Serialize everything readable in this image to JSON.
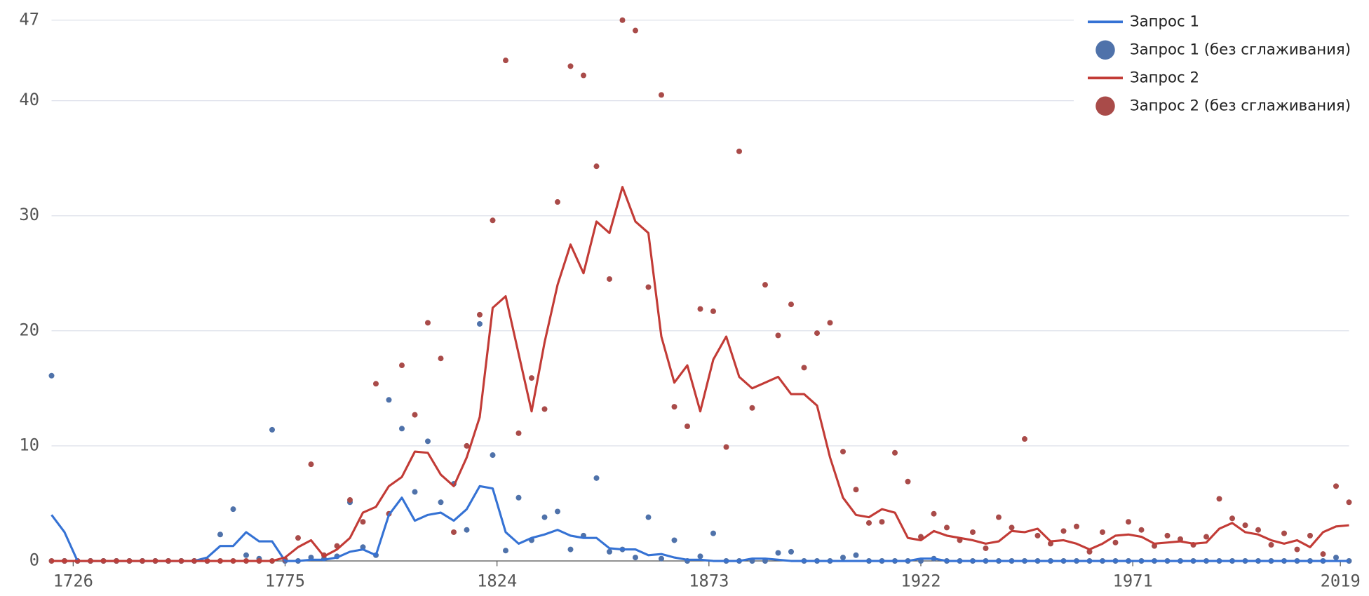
{
  "chart_data": {
    "type": "line",
    "x": [
      1721,
      1724,
      1727,
      1730,
      1733,
      1736,
      1739,
      1742,
      1745,
      1748,
      1751,
      1754,
      1757,
      1760,
      1763,
      1766,
      1769,
      1772,
      1775,
      1778,
      1781,
      1784,
      1787,
      1790,
      1793,
      1796,
      1799,
      1802,
      1805,
      1808,
      1811,
      1814,
      1817,
      1820,
      1823,
      1826,
      1829,
      1832,
      1835,
      1838,
      1841,
      1844,
      1847,
      1850,
      1853,
      1856,
      1859,
      1862,
      1865,
      1868,
      1871,
      1874,
      1877,
      1880,
      1883,
      1886,
      1889,
      1892,
      1895,
      1898,
      1901,
      1904,
      1907,
      1910,
      1913,
      1916,
      1919,
      1922,
      1925,
      1928,
      1931,
      1934,
      1937,
      1940,
      1943,
      1946,
      1949,
      1952,
      1955,
      1958,
      1961,
      1964,
      1967,
      1970,
      1973,
      1976,
      1979,
      1982,
      1985,
      1988,
      1991,
      1994,
      1997,
      2000,
      2003,
      2006,
      2009,
      2012,
      2015,
      2018,
      2021
    ],
    "series": [
      {
        "name": "Запрос 1",
        "type": "line",
        "color": "#3572d4",
        "values": [
          4.0,
          2.5,
          0,
          0,
          0,
          0,
          0,
          0,
          0,
          0,
          0,
          0,
          0.3,
          1.3,
          1.3,
          2.5,
          1.7,
          1.7,
          0,
          0,
          0.1,
          0.1,
          0.3,
          0.8,
          1.0,
          0.5,
          4.0,
          5.5,
          3.5,
          4.0,
          4.2,
          3.5,
          4.5,
          6.5,
          6.3,
          2.5,
          1.5,
          2.0,
          2.3,
          2.7,
          2.2,
          2.0,
          2.0,
          1.1,
          1.0,
          1.0,
          0.5,
          0.6,
          0.3,
          0.1,
          0.1,
          0,
          0,
          0,
          0.2,
          0.2,
          0.1,
          0,
          0,
          0,
          0,
          0,
          0,
          0,
          0,
          0,
          0,
          0.2,
          0.2,
          0,
          0,
          0,
          0,
          0,
          0,
          0,
          0,
          0,
          0,
          0,
          0,
          0,
          0,
          0,
          0,
          0,
          0,
          0,
          0,
          0,
          0,
          0,
          0,
          0,
          0,
          0,
          0,
          0,
          0,
          0,
          0
        ]
      },
      {
        "name": "Запрос 1 (без сглаживания)",
        "type": "scatter",
        "color": "#4f72aa",
        "values": [
          16.1,
          0,
          0,
          0,
          0,
          0,
          0,
          0,
          0,
          0,
          0,
          0,
          0,
          2.3,
          4.5,
          0.5,
          0.2,
          11.4,
          0,
          0,
          0.3,
          0.2,
          0.4,
          5.1,
          1.2,
          0.5,
          14.0,
          11.5,
          6.0,
          10.4,
          5.1,
          6.7,
          2.7,
          20.6,
          9.2,
          0.9,
          5.5,
          1.8,
          3.8,
          4.3,
          1.0,
          2.2,
          7.2,
          0.8,
          1.0,
          0.3,
          3.8,
          0.2,
          1.8,
          0,
          0.4,
          2.4,
          0,
          0,
          0,
          0,
          0.7,
          0.8,
          0,
          0,
          0,
          0.3,
          0.5,
          0,
          0,
          0,
          0,
          0,
          0.2,
          0,
          0,
          0,
          0,
          0,
          0,
          0,
          0,
          0,
          0,
          0,
          0,
          0,
          0,
          0,
          0,
          0,
          0,
          0,
          0,
          0,
          0,
          0,
          0,
          0,
          0,
          0,
          0,
          0,
          0,
          0.3,
          0
        ]
      },
      {
        "name": "Запрос 2",
        "type": "line",
        "color": "#c23b36",
        "values": [
          0,
          0,
          0,
          0,
          0,
          0,
          0,
          0,
          0,
          0,
          0,
          0,
          0,
          0,
          0,
          0,
          0,
          0,
          0.3,
          1.2,
          1.8,
          0.4,
          1.0,
          2.0,
          4.2,
          4.7,
          6.5,
          7.3,
          9.5,
          9.4,
          7.5,
          6.5,
          9.0,
          12.5,
          22.0,
          23.0,
          18.0,
          13.0,
          19.0,
          24.0,
          27.5,
          25.0,
          29.5,
          28.5,
          32.5,
          29.5,
          28.5,
          19.5,
          15.5,
          17.0,
          13.0,
          17.5,
          19.5,
          16.0,
          15.0,
          15.5,
          16.0,
          14.5,
          14.5,
          13.5,
          9.0,
          5.5,
          4.0,
          3.8,
          4.5,
          4.2,
          2.0,
          1.8,
          2.6,
          2.2,
          2.0,
          1.8,
          1.5,
          1.7,
          2.6,
          2.5,
          2.8,
          1.7,
          1.8,
          1.5,
          1.0,
          1.5,
          2.2,
          2.3,
          2.1,
          1.5,
          1.6,
          1.7,
          1.5,
          1.6,
          2.8,
          3.3,
          2.5,
          2.3,
          1.8,
          1.5,
          1.8,
          1.2,
          2.5,
          3.0,
          3.1
        ]
      },
      {
        "name": "Запрос 2 (без сглаживания)",
        "type": "scatter",
        "color": "#a94b49",
        "values": [
          0,
          0,
          0,
          0,
          0,
          0,
          0,
          0,
          0,
          0,
          0,
          0,
          0,
          0,
          0,
          0,
          0,
          0,
          0.1,
          2.0,
          8.4,
          0.5,
          1.3,
          5.3,
          3.4,
          15.4,
          4.1,
          17.0,
          12.7,
          20.7,
          17.6,
          2.5,
          10.0,
          21.4,
          29.6,
          43.5,
          11.1,
          15.9,
          13.2,
          31.2,
          43.0,
          42.2,
          34.3,
          24.5,
          47.0,
          46.1,
          23.8,
          40.5,
          13.4,
          11.7,
          21.9,
          21.7,
          9.9,
          35.6,
          13.3,
          24.0,
          19.6,
          22.3,
          16.8,
          19.8,
          20.7,
          9.5,
          6.2,
          3.3,
          3.4,
          9.4,
          6.9,
          2.1,
          4.1,
          2.9,
          1.8,
          2.5,
          1.1,
          3.8,
          2.9,
          10.6,
          2.2,
          1.5,
          2.6,
          3.0,
          0.8,
          2.5,
          1.6,
          3.4,
          2.7,
          1.3,
          2.2,
          1.9,
          1.4,
          2.1,
          5.4,
          3.7,
          3.1,
          2.7,
          1.4,
          2.4,
          1.0,
          2.2,
          0.6,
          6.5,
          5.1
        ]
      }
    ],
    "xlim": [
      1721,
      2021
    ],
    "xticks": [
      1726,
      1775,
      1824,
      1873,
      1922,
      1971,
      2019
    ],
    "ylim": [
      0,
      47
    ],
    "yticks": [
      0,
      10,
      20,
      30,
      40,
      47
    ],
    "grid": true,
    "legend": "top-right"
  }
}
